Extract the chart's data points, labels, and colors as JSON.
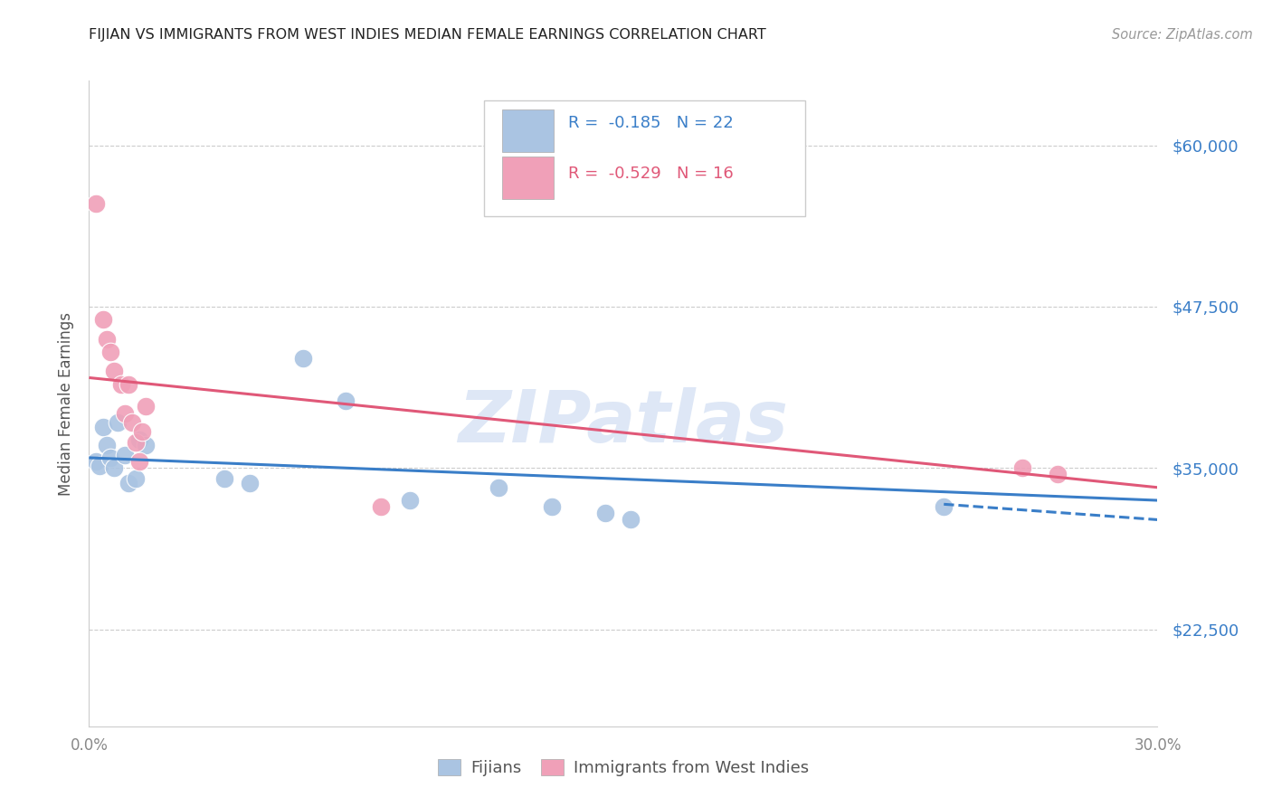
{
  "title": "FIJIAN VS IMMIGRANTS FROM WEST INDIES MEDIAN FEMALE EARNINGS CORRELATION CHART",
  "source": "Source: ZipAtlas.com",
  "ylabel": "Median Female Earnings",
  "xlim": [
    0.0,
    0.3
  ],
  "ylim": [
    15000,
    65000
  ],
  "yticks": [
    22500,
    35000,
    47500,
    60000
  ],
  "ytick_labels": [
    "$22,500",
    "$35,000",
    "$47,500",
    "$60,000"
  ],
  "xticks": [
    0.0,
    0.05,
    0.1,
    0.15,
    0.2,
    0.25,
    0.3
  ],
  "xtick_labels": [
    "0.0%",
    "",
    "",
    "",
    "",
    "",
    "30.0%"
  ],
  "background_color": "#ffffff",
  "grid_color": "#cccccc",
  "watermark": "ZIPatlas",
  "fijian_color": "#aac4e2",
  "westindies_color": "#f0a0b8",
  "fijian_line_color": "#3a7ec8",
  "westindies_line_color": "#e05878",
  "fijian_points": [
    [
      0.002,
      35500
    ],
    [
      0.003,
      35200
    ],
    [
      0.004,
      38200
    ],
    [
      0.005,
      36800
    ],
    [
      0.006,
      35800
    ],
    [
      0.007,
      35000
    ],
    [
      0.008,
      38500
    ],
    [
      0.01,
      36000
    ],
    [
      0.011,
      33800
    ],
    [
      0.013,
      34200
    ],
    [
      0.014,
      37200
    ],
    [
      0.016,
      36800
    ],
    [
      0.038,
      34200
    ],
    [
      0.045,
      33800
    ],
    [
      0.06,
      43500
    ],
    [
      0.072,
      40200
    ],
    [
      0.09,
      32500
    ],
    [
      0.115,
      33500
    ],
    [
      0.13,
      32000
    ],
    [
      0.145,
      31500
    ],
    [
      0.152,
      31000
    ],
    [
      0.24,
      32000
    ]
  ],
  "westindies_points": [
    [
      0.002,
      55500
    ],
    [
      0.004,
      46500
    ],
    [
      0.005,
      45000
    ],
    [
      0.006,
      44000
    ],
    [
      0.007,
      42500
    ],
    [
      0.009,
      41500
    ],
    [
      0.01,
      39200
    ],
    [
      0.011,
      41500
    ],
    [
      0.012,
      38500
    ],
    [
      0.013,
      37000
    ],
    [
      0.014,
      35500
    ],
    [
      0.015,
      37800
    ],
    [
      0.016,
      39800
    ],
    [
      0.082,
      32000
    ],
    [
      0.262,
      35000
    ],
    [
      0.272,
      34500
    ]
  ],
  "fijian_trend": [
    0.0,
    35800,
    0.3,
    32500
  ],
  "fijian_dash": [
    0.24,
    32200,
    0.3,
    31000
  ],
  "westindies_trend": [
    0.0,
    42000,
    0.3,
    33500
  ],
  "title_color": "#222222",
  "source_color": "#999999",
  "axis_label_color": "#555555",
  "ytick_color": "#3a7ec8",
  "xtick_color": "#888888",
  "legend_r_color": "#3a7ec8",
  "bottom_legend_blue": "Fijians",
  "bottom_legend_pink": "Immigrants from West Indies"
}
